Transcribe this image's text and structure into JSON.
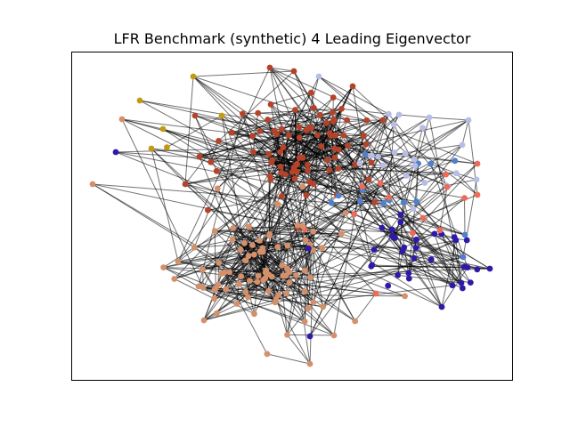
{
  "title": "LFR Benchmark (synthetic) 4 Leading Eigenvector",
  "graph": {
    "type": "network",
    "layout": "force-directed",
    "axes_visible": false,
    "community_colors": {
      "dark_red": "#b5432a",
      "salmon": "#d4906b",
      "navy": "#2e1aa8",
      "blue": "#4f80cc",
      "light_blue": "#b7bde6",
      "coral": "#f06a5a",
      "gold": "#c49a12"
    },
    "communities": [
      {
        "key": "dark_red",
        "size": 86
      },
      {
        "key": "salmon",
        "size": 90
      },
      {
        "key": "navy",
        "size": 36
      },
      {
        "key": "blue",
        "size": 14
      },
      {
        "key": "light_blue",
        "size": 22
      },
      {
        "key": "coral",
        "size": 14
      },
      {
        "key": "gold",
        "size": 6
      }
    ]
  }
}
